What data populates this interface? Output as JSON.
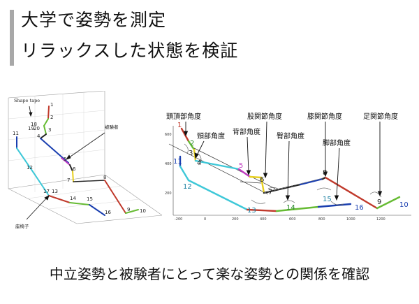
{
  "title": {
    "line1": "大学で姿勢を測定",
    "line2": "リラックスした状態を検証"
  },
  "caption": "中立姿勢と被験者にとって楽な姿勢との関係を確認",
  "left_figure": {
    "labels": {
      "shape_tape": "Shape tape",
      "subject": "被験者",
      "chair": "座椅子"
    },
    "points": [
      "1",
      "2",
      "3",
      "4",
      "5",
      "6",
      "7",
      "8",
      "9",
      "10",
      "11",
      "12",
      "13",
      "14",
      "15",
      "16",
      "17",
      "18",
      "19",
      "20"
    ]
  },
  "right_figure": {
    "angle_labels": {
      "head_top": "頭頂部角度",
      "neck": "頸部角度",
      "back": "背部角度",
      "hip": "股関節角度",
      "buttock": "臀部角度",
      "knee": "膝関節角度",
      "leg": "脚部角度",
      "ankle": "足関節角度"
    },
    "points": [
      "1",
      "2",
      "3",
      "4",
      "5",
      "6",
      "7",
      "8",
      "9",
      "10",
      "11",
      "12",
      "13",
      "14",
      "15",
      "16"
    ],
    "y_ticks": [
      "600",
      "400",
      "200"
    ],
    "x_ticks": [
      "-200",
      "0",
      "200",
      "400",
      "600",
      "800",
      "1000",
      "1200"
    ]
  }
}
